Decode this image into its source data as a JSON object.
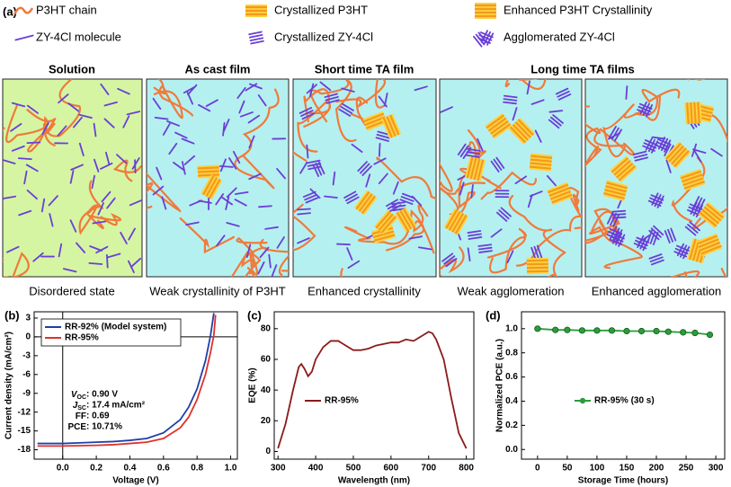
{
  "figure": {
    "panel_a": {
      "label": "(a)",
      "legend": [
        "P3HT chain",
        "Crystallized P3HT",
        "Enhanced P3HT Crystallinity",
        "ZY-4Cl molecule",
        "Crystallized ZY-4Cl",
        "Agglomerated ZY-4Cl"
      ],
      "panel_titles": [
        "Solution",
        "As cast film",
        "Short time TA film",
        "Long time TA films"
      ],
      "captions": [
        "Disordered state",
        "Weak crystallinity  of P3HT",
        "Enhanced crystallinity",
        "Weak agglomeration",
        "Enhanced agglomeration"
      ]
    }
  },
  "chart_data": [
    {
      "type": "line",
      "panel_label": "(b)",
      "x_label": "Voltage (V)",
      "y_label": "Current density (mA/cm²)",
      "x": [
        -0.15,
        0,
        0.1,
        0.2,
        0.3,
        0.4,
        0.5,
        0.6,
        0.7,
        0.75,
        0.8,
        0.85,
        0.88,
        0.9,
        0.91
      ],
      "series": [
        {
          "name": "RR-92% (Model system)",
          "color": "#1f3fa8",
          "values": [
            -17.0,
            -17.0,
            -16.9,
            -16.8,
            -16.7,
            -16.5,
            -16.2,
            -15.3,
            -13.2,
            -11.2,
            -8.3,
            -3.8,
            0.2,
            3.8,
            null
          ]
        },
        {
          "name": "RR-95%",
          "color": "#e0302a",
          "values": [
            -17.4,
            -17.4,
            -17.35,
            -17.3,
            -17.2,
            -17.0,
            -16.8,
            -16.2,
            -14.5,
            -12.8,
            -10.0,
            -6.0,
            -2.5,
            0.3,
            3.5
          ]
        }
      ],
      "xlim": [
        -0.17,
        1.04
      ],
      "xticks": [
        {
          "value": 0,
          "label": "0.0"
        },
        {
          "value": 0.2,
          "label": "0.2"
        },
        {
          "value": 0.4,
          "label": "0.4"
        },
        {
          "value": 0.6,
          "label": "0.6"
        },
        {
          "value": 0.8,
          "label": "0.8"
        },
        {
          "value": 1,
          "label": "1.0"
        }
      ],
      "ylim": [
        -19.5,
        4
      ],
      "yticks": [
        3,
        0,
        -3,
        -6,
        -9,
        -12,
        -15,
        -18
      ],
      "zero_lines": true,
      "legend": "upper left",
      "markers": false,
      "annotations": [
        {
          "symbol": "V",
          "subscript": "OC",
          "text": ": 0.90 V"
        },
        {
          "symbol": "J",
          "subscript": "SC",
          "text": ": 17.4 mA/cm²"
        },
        {
          "symbol": "FF",
          "text": ": 0.69"
        },
        {
          "symbol": "PCE",
          "text": ": 10.71%"
        }
      ]
    },
    {
      "type": "line",
      "panel_label": "(c)",
      "x_label": "Wavelength (nm)",
      "y_label": "EQE (%)",
      "x": [
        300,
        320,
        340,
        355,
        362,
        370,
        380,
        390,
        400,
        420,
        440,
        460,
        480,
        500,
        520,
        540,
        560,
        580,
        600,
        620,
        640,
        660,
        680,
        700,
        710,
        720,
        740,
        760,
        780,
        800
      ],
      "series": [
        {
          "name": "RR-95%",
          "color": "#8b1a1a",
          "values": [
            2,
            18,
            40,
            55,
            57,
            54,
            49,
            52,
            60,
            68,
            72,
            72,
            69,
            66,
            66,
            67,
            69,
            70,
            71,
            71,
            73,
            72,
            75,
            78,
            77,
            73,
            60,
            35,
            12,
            2
          ]
        }
      ],
      "xlim": [
        290,
        820
      ],
      "xticks": [
        300,
        400,
        500,
        600,
        700,
        800
      ],
      "ylim": [
        -5,
        91
      ],
      "yticks": [
        0,
        20,
        40,
        60,
        80
      ],
      "zero_lines": false,
      "legend": "center left",
      "markers": false
    },
    {
      "type": "line",
      "panel_label": "(d)",
      "x_label": "Storage Time (hours)",
      "y_label": "Normalized PCE (a.u.)",
      "x": [
        0,
        30,
        50,
        75,
        100,
        125,
        150,
        175,
        200,
        220,
        245,
        265,
        290
      ],
      "series": [
        {
          "name": "RR-95% (30 s)",
          "color": "#2a9d3a",
          "values": [
            1.0,
            0.99,
            0.99,
            0.985,
            0.985,
            0.985,
            0.98,
            0.98,
            0.98,
            0.975,
            0.97,
            0.965,
            0.95
          ]
        }
      ],
      "xlim": [
        -27,
        315
      ],
      "xticks": [
        0,
        50,
        100,
        150,
        200,
        250,
        300
      ],
      "ylim": [
        -0.08,
        1.14
      ],
      "yticks": [
        {
          "value": 0,
          "label": "0.0"
        },
        {
          "value": 0.2,
          "label": "0.2"
        },
        {
          "value": 0.4,
          "label": "0.4"
        },
        {
          "value": 0.6,
          "label": "0.6"
        },
        {
          "value": 0.8,
          "label": "0.8"
        },
        {
          "value": 1,
          "label": "1.0"
        }
      ],
      "zero_lines": false,
      "legend": "center",
      "markers": true
    }
  ]
}
